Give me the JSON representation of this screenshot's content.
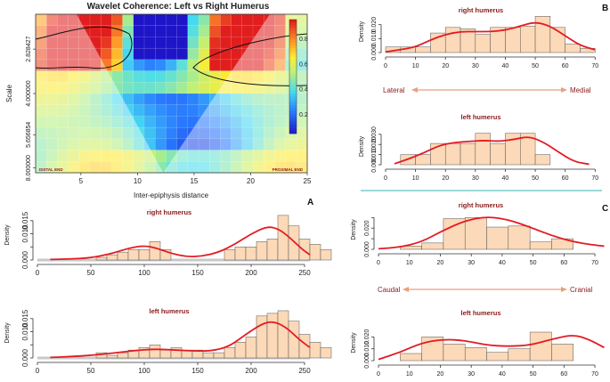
{
  "figure": {
    "panel_labels": {
      "A": "A",
      "B": "B",
      "C": "C"
    },
    "axis_label_density": "Density"
  },
  "chart_data": [
    {
      "id": "wavelet",
      "type": "heatmap",
      "title": "Wavelet Coherence: Left vs Right Humerus",
      "xlabel": "Inter-epiphysis distance",
      "ylabel": "Scale",
      "x_ticks": [
        5,
        10,
        15,
        20,
        25
      ],
      "x_tick_labels": [
        "5",
        "10",
        "15",
        "20",
        "25"
      ],
      "y_tick_labels": [
        "2.828427",
        "4.000000",
        "5.656854",
        "8.000000"
      ],
      "edge_labels": [
        "DISTAL END",
        "PROXIMAL END"
      ],
      "colorbar_ticks": [
        "0.2",
        "0.4",
        "0.6",
        "0.8"
      ],
      "xlim": [
        1,
        25
      ],
      "grid_cols": 25,
      "grid_rows": 14
    },
    {
      "id": "A_right",
      "type": "bar",
      "title": "right humerus",
      "ylabel": "Density",
      "xlim": [
        0,
        255
      ],
      "ylim": [
        0,
        0.019
      ],
      "x_ticks": [
        0,
        50,
        100,
        150,
        200,
        250
      ],
      "y_ticks": [
        0.0,
        0.005,
        0.01,
        0.015
      ],
      "y_tick_labels": [
        "0.000",
        "",
        "0.010",
        "0.015"
      ],
      "bin_width": 10,
      "bin_start": 55,
      "values": [
        0.001,
        0.002,
        0.003,
        0.004,
        0.004,
        0.007,
        0.004,
        0.0,
        0.0,
        0.0,
        0.0,
        0.0,
        0.004,
        0.005,
        0.005,
        0.007,
        0.008,
        0.017,
        0.013,
        0.008,
        0.006,
        0.004
      ],
      "curve": [
        [
          12,
          0.0002
        ],
        [
          30,
          0.0004
        ],
        [
          50,
          0.0008
        ],
        [
          70,
          0.0025
        ],
        [
          85,
          0.0045
        ],
        [
          100,
          0.0055
        ],
        [
          112,
          0.0045
        ],
        [
          125,
          0.0025
        ],
        [
          140,
          0.0012
        ],
        [
          155,
          0.0015
        ],
        [
          170,
          0.003
        ],
        [
          185,
          0.006
        ],
        [
          200,
          0.01
        ],
        [
          215,
          0.0128
        ],
        [
          225,
          0.012
        ],
        [
          235,
          0.009
        ],
        [
          248,
          0.004
        ],
        [
          255,
          0.002
        ]
      ]
    },
    {
      "id": "A_left",
      "type": "bar",
      "title": "left humerus",
      "ylabel": "Density",
      "xlim": [
        0,
        255
      ],
      "ylim": [
        0,
        0.019
      ],
      "x_ticks": [
        0,
        50,
        100,
        150,
        200,
        250
      ],
      "y_ticks": [
        0.0,
        0.005,
        0.01,
        0.015
      ],
      "y_tick_labels": [
        "0.000",
        "",
        "0.010",
        "0.015"
      ],
      "bin_width": 10,
      "bin_start": 55,
      "values": [
        0.002,
        0.001,
        0.002,
        0.003,
        0.004,
        0.005,
        0.003,
        0.004,
        0.003,
        0.003,
        0.002,
        0.002,
        0.004,
        0.006,
        0.008,
        0.016,
        0.017,
        0.018,
        0.014,
        0.009,
        0.006,
        0.004
      ],
      "curve": [
        [
          12,
          0.0002
        ],
        [
          30,
          0.0005
        ],
        [
          50,
          0.001
        ],
        [
          70,
          0.0018
        ],
        [
          90,
          0.0028
        ],
        [
          110,
          0.0034
        ],
        [
          130,
          0.003
        ],
        [
          150,
          0.0026
        ],
        [
          165,
          0.0028
        ],
        [
          180,
          0.0045
        ],
        [
          195,
          0.009
        ],
        [
          210,
          0.013
        ],
        [
          220,
          0.014
        ],
        [
          232,
          0.012
        ],
        [
          245,
          0.007
        ],
        [
          255,
          0.004
        ]
      ]
    },
    {
      "id": "B_right",
      "type": "bar",
      "title": "right humerus",
      "ylabel": "Density",
      "xlim": [
        0,
        72
      ],
      "ylim": [
        0,
        0.03
      ],
      "x_ticks": [
        0,
        10,
        20,
        30,
        40,
        50,
        60,
        70
      ],
      "y_ticks": [
        0.0,
        0.01,
        0.02
      ],
      "y_tick_labels": [
        "0.000",
        "0.010",
        "0.020"
      ],
      "bin_width": 5,
      "bin_start": 0,
      "values": [
        0.004,
        0.004,
        0.004,
        0.014,
        0.018,
        0.017,
        0.013,
        0.018,
        0.018,
        0.019,
        0.026,
        0.018,
        0.006,
        0.003
      ],
      "curve": [
        [
          0,
          0.0005
        ],
        [
          5,
          0.002
        ],
        [
          10,
          0.004
        ],
        [
          15,
          0.009
        ],
        [
          20,
          0.013
        ],
        [
          25,
          0.015
        ],
        [
          30,
          0.015
        ],
        [
          35,
          0.015
        ],
        [
          40,
          0.016
        ],
        [
          45,
          0.019
        ],
        [
          50,
          0.022
        ],
        [
          55,
          0.019
        ],
        [
          60,
          0.012
        ],
        [
          65,
          0.005
        ],
        [
          70,
          0.002
        ]
      ]
    },
    {
      "id": "B_left",
      "type": "bar",
      "title": "left humerus",
      "ylabel": "Density",
      "xlim": [
        0,
        72
      ],
      "ylim": [
        0,
        0.036
      ],
      "x_ticks": [
        0,
        10,
        20,
        30,
        40,
        50,
        60,
        70
      ],
      "y_ticks": [
        0.0,
        0.01,
        0.02,
        0.03
      ],
      "y_tick_labels": [
        "0.000",
        "0.010",
        "0.020",
        "0.030"
      ],
      "bin_width": 5,
      "bin_start": 5,
      "values": [
        0.01,
        0.01,
        0.021,
        0.021,
        0.021,
        0.031,
        0.021,
        0.031,
        0.031,
        0.01
      ],
      "curve": [
        [
          3,
          0.001
        ],
        [
          8,
          0.006
        ],
        [
          13,
          0.012
        ],
        [
          18,
          0.019
        ],
        [
          23,
          0.022
        ],
        [
          28,
          0.023
        ],
        [
          33,
          0.024
        ],
        [
          38,
          0.023
        ],
        [
          43,
          0.025
        ],
        [
          48,
          0.028
        ],
        [
          53,
          0.022
        ],
        [
          58,
          0.012
        ],
        [
          63,
          0.003
        ],
        [
          68,
          0.0005
        ]
      ]
    },
    {
      "id": "C_right",
      "type": "bar",
      "title": "right humerus",
      "ylabel": "Density",
      "xlim": [
        0,
        72
      ],
      "ylim": [
        0,
        0.037
      ],
      "x_ticks": [
        0,
        10,
        20,
        30,
        40,
        50,
        60,
        70
      ],
      "y_ticks": [
        0.0,
        0.01,
        0.02,
        0.03
      ],
      "y_tick_labels": [
        "0.000",
        "",
        "0.020",
        ""
      ],
      "bin_width": 7,
      "bin_start": 7,
      "values": [
        0.003,
        0.006,
        0.029,
        0.03,
        0.021,
        0.022,
        0.007,
        0.01
      ],
      "curve": [
        [
          0,
          0.0005
        ],
        [
          7,
          0.002
        ],
        [
          14,
          0.007
        ],
        [
          21,
          0.018
        ],
        [
          28,
          0.027
        ],
        [
          35,
          0.031
        ],
        [
          42,
          0.028
        ],
        [
          49,
          0.021
        ],
        [
          56,
          0.013
        ],
        [
          63,
          0.007
        ],
        [
          70,
          0.004
        ],
        [
          73,
          0.003
        ]
      ]
    },
    {
      "id": "C_left",
      "type": "bar",
      "title": "left humerus",
      "ylabel": "Density",
      "xlim": [
        0,
        72
      ],
      "ylim": [
        0,
        0.03
      ],
      "x_ticks": [
        0,
        10,
        20,
        30,
        40,
        50,
        60,
        70
      ],
      "y_ticks": [
        0.0,
        0.01,
        0.02
      ],
      "y_tick_labels": [
        "0.000",
        "0.010",
        "0.020"
      ],
      "bin_width": 7,
      "bin_start": 7,
      "values": [
        0.006,
        0.02,
        0.014,
        0.011,
        0.007,
        0.01,
        0.024,
        0.014
      ],
      "curve": [
        [
          0,
          0.001
        ],
        [
          7,
          0.007
        ],
        [
          14,
          0.015
        ],
        [
          21,
          0.018
        ],
        [
          28,
          0.017
        ],
        [
          35,
          0.013
        ],
        [
          42,
          0.012
        ],
        [
          49,
          0.013
        ],
        [
          56,
          0.018
        ],
        [
          63,
          0.022
        ],
        [
          68,
          0.018
        ],
        [
          73,
          0.011
        ]
      ]
    }
  ],
  "direction_labels": {
    "B": {
      "left": "Lateral",
      "right": "Medial"
    },
    "C": {
      "left": "Caudal",
      "right": "Cranial"
    }
  }
}
